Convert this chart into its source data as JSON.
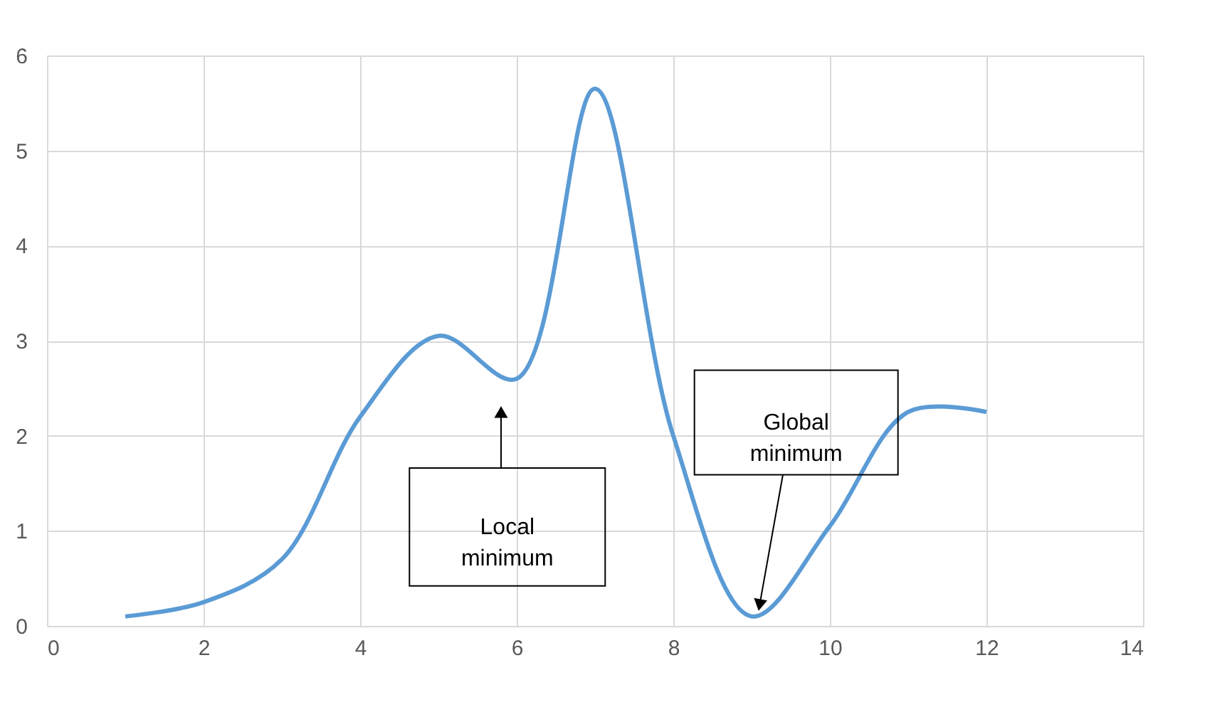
{
  "chart_data": {
    "type": "line",
    "x": [
      1,
      2,
      3,
      4,
      5,
      6,
      7,
      8,
      9,
      10,
      11,
      12
    ],
    "series": [
      {
        "color": "#5b9bd5",
        "values": [
          0.1,
          0.25,
          0.7,
          2.2,
          3.05,
          2.6,
          5.65,
          2.0,
          0.1,
          1.05,
          2.25,
          2.25
        ]
      }
    ],
    "xlim": [
      0,
      14
    ],
    "xticks": [
      0,
      2,
      4,
      6,
      8,
      10,
      12,
      14
    ],
    "ylim": [
      0,
      6
    ],
    "yticks": [
      0,
      1,
      2,
      3,
      4,
      5,
      6
    ],
    "grid": true,
    "marker": "none",
    "line_style": "solid",
    "annotations": [
      "Local minimum",
      {
        "text": "Global minimum",
        "x": 9.05,
        "y": 0.1
      }
    ]
  }
}
